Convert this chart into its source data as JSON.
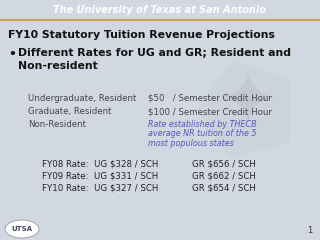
{
  "title": "FY10 Statutory Tuition Revenue Projections",
  "bullet_text": "Different Rates for UG and GR; Resident and\nNon-resident",
  "header_text": "The University of Texas at San Antonio",
  "header_bg": "#3a5f82",
  "header_border_top": "#c8a050",
  "header_border_bot": "#c0c8d0",
  "footer_bg": "#e8920a",
  "slide_bg": "#d2d8e2",
  "sub_items_labels": [
    "Undergraduate, Resident",
    "Graduate, Resident",
    "Non-Resident"
  ],
  "sub_items_values": [
    "$50   / Semester Credit Hour",
    "$100 / Semester Credit Hour",
    ""
  ],
  "thecb_lines": [
    "Rate established by THECB",
    "average NR tuition of the 5",
    "most populous states"
  ],
  "rates_left": [
    "FY08 Rate:  UG $328 / SCH",
    "FY09 Rate:  UG $331 / SCH",
    "FY10 Rate:  UG $327 / SCH"
  ],
  "rates_right": [
    "GR $656 / SCH",
    "GR $662 / SCH",
    "GR $654 / SCH"
  ],
  "sub_color": "#444444",
  "rate_color": "#222222",
  "thecb_color": "#5555bb",
  "title_color": "#111111",
  "bullet_color": "#111111",
  "page_num": "1",
  "star_color": "#b8bfc8"
}
